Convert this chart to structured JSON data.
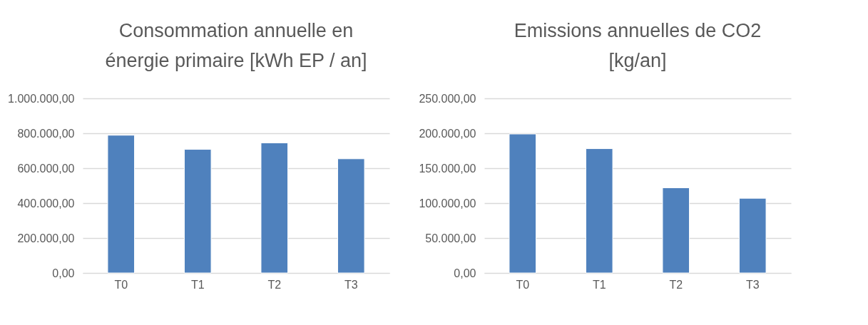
{
  "chart_data": [
    {
      "type": "bar",
      "title": "Consommation annuelle en énergie primaire [kWh EP / an]",
      "categories": [
        "T0",
        "T1",
        "T2",
        "T3"
      ],
      "values": [
        789000,
        708000,
        745000,
        654000
      ],
      "color": "#4f81bd",
      "ylim": [
        0,
        1000000
      ],
      "yticks": [
        {
          "value": 0,
          "label": "0,00"
        },
        {
          "value": 200000,
          "label": "200.000,00"
        },
        {
          "value": 400000,
          "label": "400.000,00"
        },
        {
          "value": 600000,
          "label": "600.000,00"
        },
        {
          "value": 800000,
          "label": "800.000,00"
        },
        {
          "value": 1000000,
          "label": "1.000.000,00"
        }
      ],
      "grid": "y"
    },
    {
      "type": "bar",
      "title": "Emissions annuelles de CO2 [kg/an]",
      "categories": [
        "T0",
        "T1",
        "T2",
        "T3"
      ],
      "values": [
        199000,
        178000,
        122000,
        107000
      ],
      "color": "#4f81bd",
      "ylim": [
        0,
        250000
      ],
      "yticks": [
        {
          "value": 0,
          "label": "0,00"
        },
        {
          "value": 50000,
          "label": "50.000,00"
        },
        {
          "value": 100000,
          "label": "100.000,00"
        },
        {
          "value": 150000,
          "label": "150.000,00"
        },
        {
          "value": 200000,
          "label": "200.000,00"
        },
        {
          "value": 250000,
          "label": "250.000,00"
        }
      ],
      "grid": "y"
    }
  ]
}
